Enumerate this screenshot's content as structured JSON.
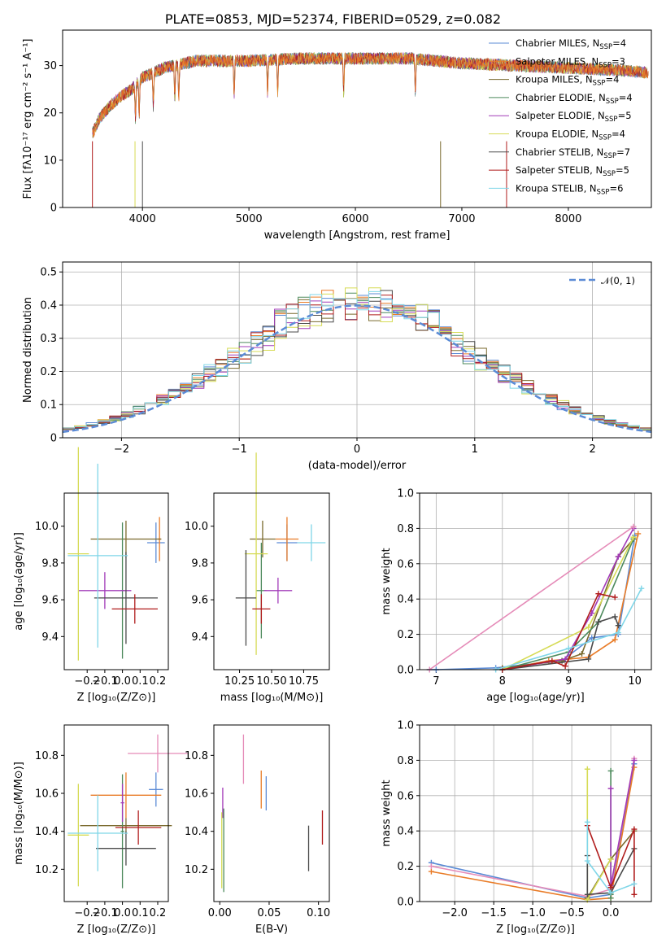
{
  "title": "PLATE=0853, MJD=52374, FIBERID=0529, z=0.082",
  "colors": [
    "#5b8bd6",
    "#e97c28",
    "#7a6a2e",
    "#4d8a5c",
    "#a23bb8",
    "#d6db55",
    "#4a4a4a",
    "#b01c1c",
    "#7fd6e8"
  ],
  "chart_data": [
    {
      "id": "spectrum",
      "type": "line",
      "xlabel": "wavelength [Angstrom, rest frame]",
      "ylabel": "Flux [fλ10⁻¹⁷ erg cm⁻² s⁻¹ A⁻¹]",
      "xlim": [
        3250,
        8780
      ],
      "ylim": [
        0,
        37.5
      ],
      "xticks": [
        4000,
        5000,
        6000,
        7000,
        8000
      ],
      "yticks": [
        0,
        10,
        20,
        30
      ],
      "continuum_x": [
        3530,
        3600,
        3700,
        3800,
        3900,
        4000,
        4200,
        4500,
        5000,
        5500,
        6000,
        6500,
        7000,
        7500,
        8000,
        8500,
        8750
      ],
      "continuum_y": [
        15.5,
        19.0,
        21.5,
        23.5,
        25.0,
        27.5,
        29.5,
        31.0,
        31.0,
        31.5,
        31.5,
        31.5,
        30.5,
        30.0,
        29.5,
        29.0,
        28.5
      ],
      "legend_location": "upper right",
      "legend": [
        {
          "model": "Chabrier MILES",
          "n": "4"
        },
        {
          "model": "Salpeter MILES",
          "n": "3"
        },
        {
          "model": "Kroupa MILES",
          "n": "4"
        },
        {
          "model": "Chabrier ELODIE",
          "n": "4"
        },
        {
          "model": "Salpeter ELODIE",
          "n": "5"
        },
        {
          "model": "Kroupa ELODIE",
          "n": "4"
        },
        {
          "model": "Chabrier STELIB",
          "n": "7"
        },
        {
          "model": "Salpeter STELIB",
          "n": "5"
        },
        {
          "model": "Kroupa STELIB",
          "n": "6"
        }
      ],
      "legend_suffix": "SSP"
    },
    {
      "id": "residuals",
      "type": "area",
      "xlabel": "(data-model)/error",
      "ylabel": "Normed distribution",
      "xlim": [
        -2.5,
        2.5
      ],
      "ylim": [
        0,
        0.53
      ],
      "xticks": [
        -2,
        -1,
        0,
        1,
        2
      ],
      "xtick_labels": [
        "−2",
        "−1",
        "0",
        "1",
        "2"
      ],
      "yticks": [
        0,
        0.1,
        0.2,
        0.3,
        0.4,
        0.5
      ],
      "grid": true,
      "bin_width": 0.1,
      "reference_label": "𝒩(0, 1)",
      "reference_color": "#5b8bd6",
      "reference_sigma": 1.0
    },
    {
      "id": "age_vs_Z",
      "type": "scatter",
      "xlabel": "Z [log₁₀(Z/Z⊙)]",
      "ylabel": "age  [log₁₀(age/yr)]",
      "xlim": [
        -0.33,
        0.26
      ],
      "ylim": [
        9.22,
        10.18
      ],
      "xticks": [
        -0.2,
        -0.1,
        0.0,
        0.1,
        0.2
      ],
      "xtick_labels": [
        "−0.2",
        "−0.1",
        "0.0",
        "0.1",
        "0.2"
      ],
      "yticks": [
        9.4,
        9.6,
        9.8,
        10.0
      ],
      "ytick_labels": [
        "9.4",
        "9.6",
        "9.8",
        "10.0"
      ],
      "points": [
        {
          "x": 0.19,
          "y": 9.91,
          "xerr": 0.05,
          "yerr": 0.11,
          "c": 0
        },
        {
          "x": 0.21,
          "y": 9.93,
          "xerr": 0.01,
          "yerr": 0.12,
          "c": 1
        },
        {
          "x": 0.02,
          "y": 9.93,
          "xerr": 0.2,
          "yerr": 0.1,
          "c": 2
        },
        {
          "x": 0.0,
          "y": 9.65,
          "xerr": 0.01,
          "yerr": 0.37,
          "c": 3
        },
        {
          "x": -0.1,
          "y": 9.65,
          "xerr": 0.15,
          "yerr": 0.1,
          "c": 4
        },
        {
          "x": -0.25,
          "y": 9.85,
          "xerr": 0.06,
          "yerr": 0.58,
          "c": 5
        },
        {
          "x": 0.02,
          "y": 9.61,
          "xerr": 0.18,
          "yerr": 0.25,
          "c": 6
        },
        {
          "x": 0.07,
          "y": 9.55,
          "xerr": 0.13,
          "yerr": 0.08,
          "c": 7
        },
        {
          "x": -0.14,
          "y": 9.84,
          "xerr": 0.17,
          "yerr": 0.5,
          "c": 8
        }
      ]
    },
    {
      "id": "age_vs_mass",
      "type": "scatter",
      "xlabel": "mass [log₁₀(M/M⊙)]",
      "ylabel": "",
      "xlim": [
        10.05,
        10.95
      ],
      "ylim": [
        9.22,
        10.18
      ],
      "xticks": [
        10.25,
        10.5,
        10.75
      ],
      "xtick_labels": [
        "10.25",
        "10.50",
        "10.75"
      ],
      "yticks": [
        9.4,
        9.6,
        9.8,
        10.0
      ],
      "ytick_labels": [
        "9.4",
        "9.6",
        "9.8",
        "10.0"
      ],
      "points": [
        {
          "x": 10.62,
          "y": 9.91,
          "xerr": 0.08,
          "yerr": 0.1,
          "c": 0
        },
        {
          "x": 10.62,
          "y": 9.93,
          "xerr": 0.09,
          "yerr": 0.12,
          "c": 1
        },
        {
          "x": 10.43,
          "y": 9.93,
          "xerr": 0.1,
          "yerr": 0.1,
          "c": 2
        },
        {
          "x": 10.42,
          "y": 9.65,
          "xerr": 0.04,
          "yerr": 0.26,
          "c": 3
        },
        {
          "x": 10.55,
          "y": 9.65,
          "xerr": 0.11,
          "yerr": 0.07,
          "c": 4
        },
        {
          "x": 10.38,
          "y": 9.85,
          "xerr": 0.09,
          "yerr": 0.55,
          "c": 5
        },
        {
          "x": 10.3,
          "y": 9.61,
          "xerr": 0.08,
          "yerr": 0.26,
          "c": 6
        },
        {
          "x": 10.42,
          "y": 9.55,
          "xerr": 0.07,
          "yerr": 0.08,
          "c": 7
        },
        {
          "x": 10.81,
          "y": 9.91,
          "xerr": 0.11,
          "yerr": 0.1,
          "c": 8
        }
      ]
    },
    {
      "id": "weight_vs_age",
      "type": "line",
      "xlabel": "age  [log₁₀(age/yr)]",
      "ylabel": "mass weight",
      "xlim": [
        6.75,
        10.25
      ],
      "ylim": [
        0,
        1.0
      ],
      "xticks": [
        7,
        8,
        9,
        10
      ],
      "xtick_labels": [
        "7",
        "8",
        "9",
        "10"
      ],
      "yticks": [
        0,
        0.2,
        0.4,
        0.6,
        0.8,
        1.0
      ],
      "ytick_labels": [
        "0.0",
        "0.2",
        "0.4",
        "0.6",
        "0.8",
        "1.0"
      ],
      "grid": true,
      "series": [
        {
          "c": 0,
          "x": [
            6.9,
            7.0,
            7.9,
            8.9,
            9.35,
            9.75,
            10.0
          ],
          "y": [
            0.0,
            0.0,
            0.01,
            0.05,
            0.18,
            0.2,
            0.76
          ]
        },
        {
          "c": 1,
          "x": [
            8.0,
            8.7,
            9.0,
            9.3,
            9.7,
            10.05
          ],
          "y": [
            0.0,
            0.05,
            0.06,
            0.07,
            0.17,
            0.77
          ]
        },
        {
          "c": 2,
          "x": [
            8.0,
            8.9,
            9.2,
            9.75,
            9.98
          ],
          "y": [
            0.01,
            0.05,
            0.09,
            0.64,
            0.74
          ]
        },
        {
          "c": 3,
          "x": [
            8.0,
            9.0,
            9.45,
            9.98
          ],
          "y": [
            0.0,
            0.1,
            0.27,
            0.74
          ]
        },
        {
          "c": 4,
          "x": [
            8.0,
            8.95,
            9.35,
            9.75,
            9.98
          ],
          "y": [
            0.0,
            0.06,
            0.32,
            0.64,
            0.8
          ]
        },
        {
          "c": 5,
          "x": [
            8.0,
            9.3,
            9.98
          ],
          "y": [
            0.0,
            0.24,
            0.75
          ]
        },
        {
          "c": 6,
          "x": [
            8.0,
            9.3,
            9.45,
            9.7,
            9.75
          ],
          "y": [
            0.0,
            0.06,
            0.27,
            0.3,
            0.25
          ]
        },
        {
          "c": 7,
          "x": [
            8.0,
            8.75,
            8.95,
            9.45,
            9.7
          ],
          "y": [
            0.0,
            0.05,
            0.02,
            0.43,
            0.41
          ]
        },
        {
          "c": 8,
          "x": [
            7.9,
            9.0,
            9.75,
            10.1
          ],
          "y": [
            0.0,
            0.12,
            0.21,
            0.46
          ]
        },
        {
          "c": 9,
          "x": [
            6.9,
            9.98
          ],
          "y": [
            0.0,
            0.81
          ]
        }
      ]
    },
    {
      "id": "mass_vs_Z",
      "type": "scatter",
      "xlabel": "Z [log₁₀(Z/Z⊙)]",
      "ylabel": "mass [log₁₀(M/M⊙)]",
      "xlim": [
        -0.33,
        0.26
      ],
      "ylim": [
        10.03,
        10.96
      ],
      "xticks": [
        -0.2,
        -0.1,
        0.0,
        0.1,
        0.2
      ],
      "xtick_labels": [
        "−0.2",
        "−0.1",
        "0.0",
        "0.1",
        "0.2"
      ],
      "yticks": [
        10.2,
        10.4,
        10.6,
        10.8
      ],
      "ytick_labels": [
        "10.2",
        "10.4",
        "10.6",
        "10.8"
      ],
      "points": [
        {
          "x": 0.19,
          "y": 10.62,
          "xerr": 0.04,
          "yerr": 0.09,
          "c": 0
        },
        {
          "x": 0.02,
          "y": 10.59,
          "xerr": 0.2,
          "yerr": 0.12,
          "c": 1
        },
        {
          "x": 0.02,
          "y": 10.43,
          "xerr": 0.26,
          "yerr": 0.04,
          "c": 2
        },
        {
          "x": 0.0,
          "y": 10.4,
          "xerr": 0.01,
          "yerr": 0.3,
          "c": 3
        },
        {
          "x": 0.0,
          "y": 10.55,
          "xerr": 0.01,
          "yerr": 0.1,
          "c": 4
        },
        {
          "x": -0.25,
          "y": 10.38,
          "xerr": 0.06,
          "yerr": 0.27,
          "c": 5
        },
        {
          "x": 0.02,
          "y": 10.31,
          "xerr": 0.17,
          "yerr": 0.09,
          "c": 6
        },
        {
          "x": 0.09,
          "y": 10.42,
          "xerr": 0.13,
          "yerr": 0.09,
          "c": 7
        },
        {
          "x": -0.14,
          "y": 10.39,
          "xerr": 0.17,
          "yerr": 0.2,
          "c": 8
        },
        {
          "x": 0.2,
          "y": 10.81,
          "xerr": 0.17,
          "yerr": 0.1,
          "c": 9
        }
      ]
    },
    {
      "id": "mass_vs_ebv",
      "type": "scatter",
      "xlabel": "E(B-V)",
      "ylabel": "",
      "xlim": [
        -0.006,
        0.111
      ],
      "ylim": [
        10.03,
        10.96
      ],
      "xticks": [
        0.0,
        0.05,
        0.1
      ],
      "xtick_labels": [
        "0.00",
        "0.05",
        "0.10"
      ],
      "yticks": [
        10.2,
        10.4,
        10.6,
        10.8
      ],
      "ytick_labels": [
        "10.2",
        "10.4",
        "10.6",
        "10.8"
      ],
      "points": [
        {
          "x": 0.047,
          "y": 10.6,
          "yerr": 0.09,
          "c": 0
        },
        {
          "x": 0.042,
          "y": 10.62,
          "yerr": 0.1,
          "c": 1
        },
        {
          "x": 0.003,
          "y": 10.55,
          "yerr": 0.08,
          "c": 4
        },
        {
          "x": 0.002,
          "y": 10.3,
          "yerr": 0.2,
          "c": 5
        },
        {
          "x": 0.004,
          "y": 10.3,
          "yerr": 0.22,
          "c": 3
        },
        {
          "x": 0.09,
          "y": 10.31,
          "yerr": 0.12,
          "c": 6
        },
        {
          "x": 0.104,
          "y": 10.42,
          "yerr": 0.09,
          "c": 7
        },
        {
          "x": 0.024,
          "y": 10.78,
          "yerr": 0.13,
          "c": 9
        }
      ]
    },
    {
      "id": "weight_vs_Z",
      "type": "line",
      "xlabel": "Z [log₁₀(Z/Z⊙)]",
      "ylabel": "mass weight",
      "xlim": [
        -2.45,
        0.52
      ],
      "ylim": [
        0,
        1.0
      ],
      "xticks": [
        -2.0,
        -1.5,
        -1.0,
        -0.5,
        0.0
      ],
      "xtick_labels": [
        "−2.0",
        "−1.5",
        "−1.0",
        "−0.5",
        "0.0"
      ],
      "yticks": [
        0,
        0.2,
        0.4,
        0.6,
        0.8,
        1.0
      ],
      "ytick_labels": [
        "0.0",
        "0.2",
        "0.4",
        "0.6",
        "0.8",
        "1.0"
      ],
      "grid": true,
      "series": [
        {
          "c": 0,
          "x": [
            -2.3,
            -0.3,
            0.0,
            0.3
          ],
          "y": [
            0.22,
            0.02,
            0.04,
            0.78
          ]
        },
        {
          "c": 1,
          "x": [
            -2.3,
            -0.3,
            0.0,
            0.3
          ],
          "y": [
            0.17,
            0.01,
            0.02,
            0.76
          ]
        },
        {
          "c": 9,
          "x": [
            -2.3,
            -0.3,
            0.0,
            0.3
          ],
          "y": [
            0.2,
            0.03,
            0.07,
            0.81
          ]
        },
        {
          "c": 2,
          "x": [
            -0.3,
            0.0,
            0.3
          ],
          "y": [
            0.02,
            0.24,
            0.4
          ]
        },
        {
          "c": 3,
          "x": [
            0.0,
            0.0,
            0.0
          ],
          "y": [
            0.74,
            0.04,
            0.02
          ]
        },
        {
          "c": 4,
          "x": [
            0.0,
            0.0,
            0.3
          ],
          "y": [
            0.64,
            0.09,
            0.8
          ]
        },
        {
          "c": 5,
          "x": [
            -0.3,
            -0.3,
            0.0
          ],
          "y": [
            0.75,
            0.01,
            0.24
          ]
        },
        {
          "c": 6,
          "x": [
            -0.3,
            -0.3,
            0.0,
            0.3
          ],
          "y": [
            0.26,
            0.04,
            0.05,
            0.3
          ]
        },
        {
          "c": 7,
          "x": [
            -0.3,
            0.0,
            0.3,
            0.3
          ],
          "y": [
            0.43,
            0.08,
            0.41,
            0.04
          ]
        },
        {
          "c": 8,
          "x": [
            -0.3,
            -0.3,
            0.0,
            0.3
          ],
          "y": [
            0.45,
            0.23,
            0.05,
            0.1
          ]
        }
      ]
    }
  ]
}
